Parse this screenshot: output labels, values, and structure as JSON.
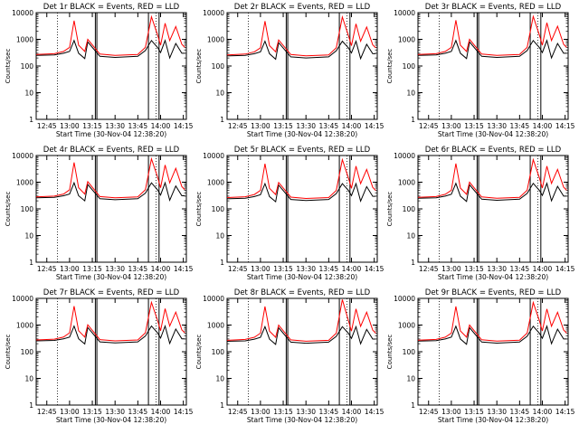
{
  "chart_data": [
    {
      "type": "line",
      "title": "Det 1r BLACK = Events, RED = LLD",
      "xlabel": "Start Time (30-Nov-04 12:38:20)",
      "ylabel": "Counts/sec",
      "yscale": "log",
      "ylim": [
        1,
        10000
      ],
      "xlim": [
        "12:38",
        "14:17"
      ],
      "x_tick_labels": [
        "12:45",
        "13:00",
        "13:15",
        "13:30",
        "13:45",
        "14:00",
        "14:15"
      ],
      "y_tick_labels": [
        "1",
        "10",
        "100",
        "1000",
        "10000"
      ],
      "x": [
        "12:38",
        "12:50",
        "12:56",
        "13:00",
        "13:03",
        "13:06",
        "13:10",
        "13:12",
        "13:20",
        "13:30",
        "13:45",
        "13:50",
        "13:54",
        "13:58",
        "14:00",
        "14:03",
        "14:06",
        "14:10",
        "14:14",
        "14:16"
      ],
      "series": [
        {
          "name": "BLACK = Events",
          "color": "#000000",
          "values": [
            250,
            260,
            300,
            350,
            900,
            300,
            190,
            800,
            230,
            210,
            230,
            380,
            900,
            500,
            320,
            900,
            200,
            700,
            300,
            300
          ]
        },
        {
          "name": "RED = LLD",
          "color": "#ff0000",
          "values": [
            270,
            290,
            350,
            500,
            5000,
            600,
            350,
            1000,
            280,
            250,
            270,
            500,
            7000,
            1500,
            600,
            4000,
            900,
            3000,
            650,
            500
          ]
        }
      ]
    },
    {
      "type": "line",
      "title": "Det 2r BLACK = Events, RED = LLD",
      "xlabel": "Start Time (30-Nov-04 12:38:20)",
      "ylabel": "Counts/sec",
      "yscale": "log",
      "ylim": [
        1,
        10000
      ],
      "xlim": [
        "12:38",
        "14:17"
      ],
      "x_tick_labels": [
        "12:45",
        "13:00",
        "13:15",
        "13:30",
        "13:45",
        "14:00",
        "14:15"
      ],
      "y_tick_labels": [
        "1",
        "10",
        "100",
        "1000",
        "10000"
      ],
      "x": [
        "12:38",
        "12:50",
        "12:56",
        "13:00",
        "13:03",
        "13:06",
        "13:10",
        "13:12",
        "13:20",
        "13:30",
        "13:45",
        "13:50",
        "13:54",
        "13:58",
        "14:00",
        "14:03",
        "14:06",
        "14:10",
        "14:14",
        "14:16"
      ],
      "series": [
        {
          "name": "BLACK = Events",
          "color": "#000000",
          "values": [
            240,
            250,
            290,
            340,
            850,
            290,
            180,
            750,
            220,
            200,
            220,
            370,
            850,
            480,
            310,
            850,
            190,
            650,
            290,
            290
          ]
        },
        {
          "name": "RED = LLD",
          "color": "#ff0000",
          "values": [
            260,
            280,
            340,
            480,
            4800,
            580,
            340,
            950,
            270,
            240,
            260,
            480,
            6800,
            1400,
            580,
            3800,
            850,
            2900,
            620,
            480
          ]
        }
      ]
    },
    {
      "type": "line",
      "title": "Det 3r BLACK = Events, RED = LLD",
      "xlabel": "Start Time (30-Nov-04 12:38:20)",
      "ylabel": "Counts/sec",
      "yscale": "log",
      "ylim": [
        1,
        10000
      ],
      "xlim": [
        "12:38",
        "14:17"
      ],
      "x_tick_labels": [
        "12:45",
        "13:00",
        "13:15",
        "13:30",
        "13:45",
        "14:00",
        "14:15"
      ],
      "y_tick_labels": [
        "1",
        "10",
        "100",
        "1000",
        "10000"
      ],
      "x": [
        "12:38",
        "12:50",
        "12:56",
        "13:00",
        "13:03",
        "13:06",
        "13:10",
        "13:12",
        "13:20",
        "13:30",
        "13:45",
        "13:50",
        "13:54",
        "13:58",
        "14:00",
        "14:03",
        "14:06",
        "14:10",
        "14:14",
        "14:16"
      ],
      "series": [
        {
          "name": "BLACK = Events",
          "color": "#000000",
          "values": [
            250,
            260,
            300,
            350,
            900,
            300,
            190,
            800,
            230,
            210,
            230,
            380,
            900,
            500,
            320,
            900,
            200,
            700,
            300,
            300
          ]
        },
        {
          "name": "RED = LLD",
          "color": "#ff0000",
          "values": [
            270,
            290,
            350,
            500,
            5200,
            600,
            350,
            1000,
            280,
            250,
            270,
            500,
            7200,
            1500,
            600,
            4200,
            900,
            3100,
            650,
            500
          ]
        }
      ]
    },
    {
      "type": "line",
      "title": "Det 4r BLACK = Events, RED = LLD",
      "xlabel": "Start Time (30-Nov-04 12:38:20)",
      "ylabel": "Counts/sec",
      "yscale": "log",
      "ylim": [
        1,
        10000
      ],
      "xlim": [
        "12:38",
        "14:17"
      ],
      "x_tick_labels": [
        "12:45",
        "13:00",
        "13:15",
        "13:30",
        "13:45",
        "14:00",
        "14:15"
      ],
      "y_tick_labels": [
        "1",
        "10",
        "100",
        "1000",
        "10000"
      ],
      "x": [
        "12:38",
        "12:50",
        "12:56",
        "13:00",
        "13:03",
        "13:06",
        "13:10",
        "13:12",
        "13:20",
        "13:30",
        "13:45",
        "13:50",
        "13:54",
        "13:58",
        "14:00",
        "14:03",
        "14:06",
        "14:10",
        "14:14",
        "14:16"
      ],
      "series": [
        {
          "name": "BLACK = Events",
          "color": "#000000",
          "values": [
            260,
            270,
            310,
            360,
            950,
            310,
            200,
            820,
            240,
            220,
            240,
            390,
            950,
            520,
            330,
            950,
            210,
            720,
            310,
            310
          ]
        },
        {
          "name": "RED = LLD",
          "color": "#ff0000",
          "values": [
            280,
            300,
            360,
            520,
            5500,
            620,
            360,
            1050,
            290,
            260,
            280,
            520,
            7500,
            1600,
            620,
            4400,
            950,
            3300,
            680,
            520
          ]
        }
      ]
    },
    {
      "type": "line",
      "title": "Det 5r BLACK = Events, RED = LLD",
      "xlabel": "Start Time (30-Nov-04 12:38:20)",
      "ylabel": "Counts/sec",
      "yscale": "log",
      "ylim": [
        1,
        10000
      ],
      "xlim": [
        "12:38",
        "14:17"
      ],
      "x_tick_labels": [
        "12:45",
        "13:00",
        "13:15",
        "13:30",
        "13:45",
        "14:00",
        "14:15"
      ],
      "y_tick_labels": [
        "1",
        "10",
        "100",
        "1000",
        "10000"
      ],
      "x": [
        "12:38",
        "12:50",
        "12:56",
        "13:00",
        "13:03",
        "13:06",
        "13:10",
        "13:12",
        "13:20",
        "13:30",
        "13:45",
        "13:50",
        "13:54",
        "13:58",
        "14:00",
        "14:03",
        "14:06",
        "14:10",
        "14:14",
        "14:16"
      ],
      "series": [
        {
          "name": "BLACK = Events",
          "color": "#000000",
          "values": [
            240,
            250,
            290,
            340,
            880,
            290,
            185,
            780,
            225,
            205,
            225,
            375,
            880,
            490,
            315,
            880,
            195,
            680,
            295,
            295
          ]
        },
        {
          "name": "RED = LLD",
          "color": "#ff0000",
          "values": [
            265,
            285,
            345,
            490,
            4900,
            590,
            345,
            980,
            275,
            245,
            265,
            490,
            7000,
            1450,
            590,
            4000,
            880,
            3000,
            640,
            490
          ]
        }
      ]
    },
    {
      "type": "line",
      "title": "Det 6r BLACK = Events, RED = LLD",
      "xlabel": "Start Time (30-Nov-04 12:38:20)",
      "ylabel": "Counts/sec",
      "yscale": "log",
      "ylim": [
        1,
        10000
      ],
      "xlim": [
        "12:38",
        "14:17"
      ],
      "x_tick_labels": [
        "12:45",
        "13:00",
        "13:15",
        "13:30",
        "13:45",
        "14:00",
        "14:15"
      ],
      "y_tick_labels": [
        "1",
        "10",
        "100",
        "1000",
        "10000"
      ],
      "x": [
        "12:38",
        "12:50",
        "12:56",
        "13:00",
        "13:03",
        "13:06",
        "13:10",
        "13:12",
        "13:20",
        "13:30",
        "13:45",
        "13:50",
        "13:54",
        "13:58",
        "14:00",
        "14:03",
        "14:06",
        "14:10",
        "14:14",
        "14:16"
      ],
      "series": [
        {
          "name": "BLACK = Events",
          "color": "#000000",
          "values": [
            250,
            260,
            300,
            350,
            900,
            300,
            190,
            800,
            230,
            210,
            230,
            380,
            900,
            500,
            320,
            900,
            200,
            700,
            300,
            300
          ]
        },
        {
          "name": "RED = LLD",
          "color": "#ff0000",
          "values": [
            270,
            290,
            350,
            500,
            5000,
            600,
            350,
            1000,
            280,
            250,
            270,
            500,
            7000,
            1500,
            600,
            4000,
            900,
            3000,
            650,
            500
          ]
        }
      ]
    },
    {
      "type": "line",
      "title": "Det 7r BLACK = Events, RED = LLD",
      "xlabel": "Start Time (30-Nov-04 12:38:20)",
      "ylabel": "Counts/sec",
      "yscale": "log",
      "ylim": [
        1,
        10000
      ],
      "xlim": [
        "12:38",
        "14:17"
      ],
      "x_tick_labels": [
        "12:45",
        "13:00",
        "13:15",
        "13:30",
        "13:45",
        "14:00",
        "14:15"
      ],
      "y_tick_labels": [
        "1",
        "10",
        "100",
        "1000",
        "10000"
      ],
      "x": [
        "12:38",
        "12:50",
        "12:56",
        "13:00",
        "13:03",
        "13:06",
        "13:10",
        "13:12",
        "13:20",
        "13:30",
        "13:45",
        "13:50",
        "13:54",
        "13:58",
        "14:00",
        "14:03",
        "14:06",
        "14:10",
        "14:14",
        "14:16"
      ],
      "series": [
        {
          "name": "BLACK = Events",
          "color": "#000000",
          "values": [
            255,
            265,
            305,
            355,
            920,
            305,
            195,
            810,
            235,
            215,
            235,
            385,
            920,
            510,
            325,
            920,
            205,
            710,
            305,
            305
          ]
        },
        {
          "name": "RED = LLD",
          "color": "#ff0000",
          "values": [
            275,
            295,
            355,
            510,
            5100,
            610,
            355,
            1020,
            285,
            255,
            275,
            510,
            7100,
            1520,
            610,
            4100,
            920,
            3050,
            660,
            510
          ]
        }
      ]
    },
    {
      "type": "line",
      "title": "Det 8r BLACK = Events, RED = LLD",
      "xlabel": "Start Time (30-Nov-04 12:38:20)",
      "ylabel": "Counts/sec",
      "yscale": "log",
      "ylim": [
        1,
        10000
      ],
      "xlim": [
        "12:38",
        "14:17"
      ],
      "x_tick_labels": [
        "12:45",
        "13:00",
        "13:15",
        "13:30",
        "13:45",
        "14:00",
        "14:15"
      ],
      "y_tick_labels": [
        "1",
        "10",
        "100",
        "1000",
        "10000"
      ],
      "x": [
        "12:38",
        "12:50",
        "12:56",
        "13:00",
        "13:03",
        "13:06",
        "13:10",
        "13:12",
        "13:20",
        "13:30",
        "13:45",
        "13:50",
        "13:54",
        "13:58",
        "14:00",
        "14:03",
        "14:06",
        "14:10",
        "14:14",
        "14:16"
      ],
      "series": [
        {
          "name": "BLACK = Events",
          "color": "#000000",
          "values": [
            245,
            255,
            295,
            345,
            870,
            295,
            188,
            790,
            228,
            208,
            228,
            378,
            870,
            495,
            318,
            870,
            198,
            690,
            298,
            298
          ]
        },
        {
          "name": "RED = LLD",
          "color": "#ff0000",
          "values": [
            268,
            288,
            348,
            495,
            4950,
            595,
            348,
            990,
            278,
            248,
            268,
            495,
            9000,
            1480,
            595,
            4050,
            890,
            3020,
            645,
            495
          ]
        }
      ]
    },
    {
      "type": "line",
      "title": "Det 9r BLACK = Events, RED = LLD",
      "xlabel": "Start Time (30-Nov-04 12:38:20)",
      "ylabel": "Counts/sec",
      "yscale": "log",
      "ylim": [
        1,
        10000
      ],
      "xlim": [
        "12:38",
        "14:17"
      ],
      "x_tick_labels": [
        "12:45",
        "13:00",
        "13:15",
        "13:30",
        "13:45",
        "14:00",
        "14:15"
      ],
      "y_tick_labels": [
        "1",
        "10",
        "100",
        "1000",
        "10000"
      ],
      "x": [
        "12:38",
        "12:50",
        "12:56",
        "13:00",
        "13:03",
        "13:06",
        "13:10",
        "13:12",
        "13:20",
        "13:30",
        "13:45",
        "13:50",
        "13:54",
        "13:58",
        "14:00",
        "14:03",
        "14:06",
        "14:10",
        "14:14",
        "14:16"
      ],
      "series": [
        {
          "name": "BLACK = Events",
          "color": "#000000",
          "values": [
            250,
            260,
            300,
            350,
            900,
            300,
            190,
            800,
            230,
            210,
            230,
            380,
            900,
            500,
            320,
            900,
            200,
            700,
            300,
            300
          ]
        },
        {
          "name": "RED = LLD",
          "color": "#ff0000",
          "values": [
            270,
            290,
            350,
            500,
            5000,
            600,
            350,
            1000,
            280,
            250,
            270,
            500,
            7000,
            1500,
            600,
            4000,
            900,
            3000,
            650,
            500
          ]
        }
      ]
    }
  ],
  "vertical_markers": {
    "dotted": [
      "12:52",
      "13:57"
    ],
    "solid": [
      "13:17",
      "13:18",
      "13:52",
      "13:59"
    ]
  }
}
